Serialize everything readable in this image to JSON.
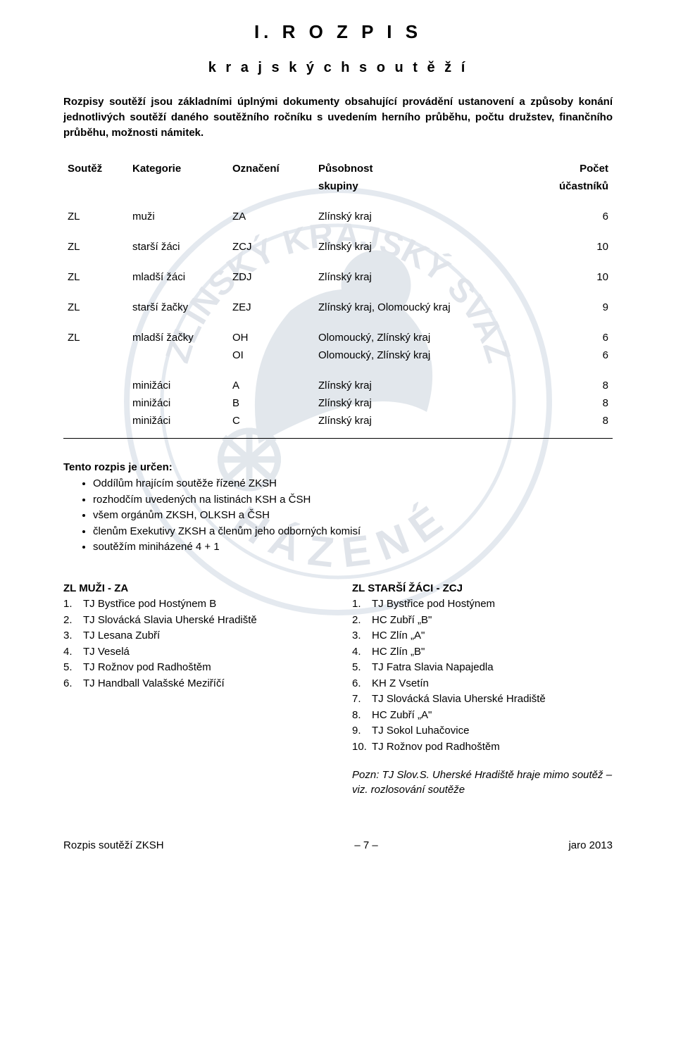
{
  "title": "I.  R O Z P I S",
  "subtitle": "k r a j s k ý c h   s o u t ě ž í",
  "intro": "Rozpisy soutěží jsou základními úplnými dokumenty obsahující provádění ustanovení a způsoby konání jednotlivých soutěží daného soutěžního ročníku s uvedením herního průběhu, počtu družstev, finančního průběhu, možnosti námitek.",
  "table": {
    "headers": [
      "Soutěž",
      "Kategorie",
      "Označení",
      "Působnost",
      "Počet"
    ],
    "subheaders": [
      "",
      "",
      "",
      "skupiny",
      "účastníků"
    ],
    "rows": [
      [
        "ZL",
        "muži",
        "ZA",
        "Zlínský kraj",
        "6"
      ],
      [
        "ZL",
        "starší žáci",
        "ZCJ",
        "Zlínský kraj",
        "10"
      ],
      [
        "ZL",
        "mladší žáci",
        "ZDJ",
        "Zlínský kraj",
        "10"
      ],
      [
        "ZL",
        "starší žačky",
        "ZEJ",
        "Zlínský kraj, Olomoucký kraj",
        "9"
      ],
      [
        "ZL",
        "mladší žačky",
        "OH",
        "Olomoucký, Zlínský kraj",
        "6"
      ],
      [
        "",
        "",
        "OI",
        "Olomoucký, Zlínský kraj",
        "6"
      ],
      [
        "",
        "minižáci",
        "A",
        "Zlínský kraj",
        "8"
      ],
      [
        "",
        "minižáci",
        "B",
        "Zlínský kraj",
        "8"
      ],
      [
        "",
        "minižáci",
        "C",
        "Zlínský kraj",
        "8"
      ]
    ]
  },
  "rozpis_title": "Tento rozpis je určen:",
  "rozpis_items": [
    "Oddílům hrajícím soutěže řízené ZKSH",
    "rozhodčím uvedených na listinách KSH a ČSH",
    "všem orgánům ZKSH, OLKSH  a ČSH",
    "členům Exekutivy ZKSH a členům jeho odborných komisí",
    "soutěžím miniházené 4 + 1"
  ],
  "left_col": {
    "title": "ZL MUŽI - ZA",
    "teams": [
      "TJ Bystřice pod Hostýnem B",
      "TJ Slovácká Slavia Uherské Hradiště",
      "TJ Lesana Zubří",
      "TJ Veselá",
      "TJ Rožnov pod Radhoštěm",
      "TJ Handball Valašské Meziříčí"
    ]
  },
  "right_col": {
    "title": "ZL STARŠÍ ŽÁCI - ZCJ",
    "teams": [
      "TJ Bystřice pod Hostýnem",
      "HC Zubří „B\"",
      "HC Zlín „A\"",
      "HC Zlín „B\"",
      "TJ Fatra Slavia Napajedla",
      "KH Z Vsetín",
      "TJ Slovácká Slavia Uherské Hradiště",
      "HC Zubří „A\"",
      "TJ Sokol Luhačovice",
      "TJ Rožnov pod Radhoštěm"
    ]
  },
  "note": "Pozn: TJ Slov.S. Uherské Hradiště hraje mimo soutěž – viz. rozlosování soutěže",
  "footer": {
    "left": "Rozpis soutěží ZKSH",
    "center": "– 7 –",
    "right": "jaro 2013"
  },
  "colors": {
    "watermark_stroke": "#9fb8d6",
    "watermark_fill": "#c5d4e6",
    "text": "#000000"
  }
}
